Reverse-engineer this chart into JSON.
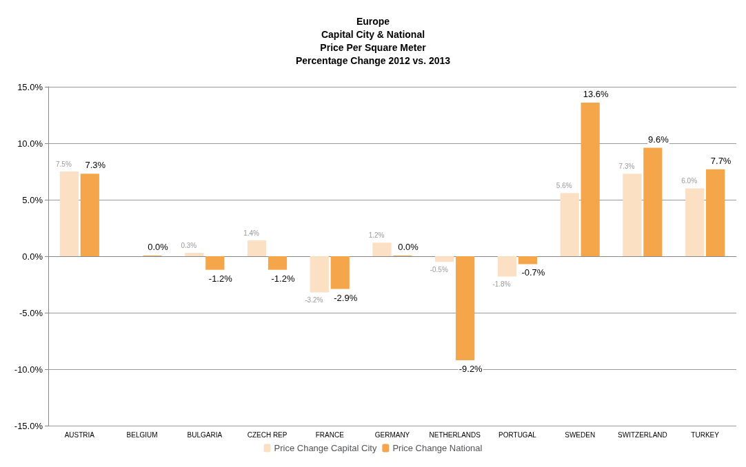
{
  "chart_data": {
    "type": "bar",
    "title": "Europe\nCapital City & National\nPrice Per Square Meter\nPercentage Change 2012 vs. 2013",
    "categories": [
      "AUSTRIA",
      "BELGIUM",
      "BULGARIA",
      "CZECH REP",
      "FRANCE",
      "GERMANY",
      "NETHERLANDS",
      "PORTUGAL",
      "SWEDEN",
      "SWITZERLAND",
      "TURKEY"
    ],
    "series": [
      {
        "name": "Price Change Capital City",
        "color": "#fbe0c4",
        "values": [
          7.5,
          null,
          0.3,
          1.4,
          -3.2,
          1.2,
          -0.5,
          -1.8,
          5.6,
          7.3,
          6.0
        ],
        "value_labels": [
          "7.5%",
          null,
          "0.3%",
          "1.4%",
          "-3.2%",
          "1.2%",
          "-0.5%",
          "-1.8%",
          "5.6%",
          "7.3%",
          "6.0%"
        ]
      },
      {
        "name": "Price Change National",
        "color": "#f5a54a",
        "values": [
          7.3,
          0.0,
          -1.2,
          -1.2,
          -2.9,
          0.0,
          -9.2,
          -0.7,
          13.6,
          9.6,
          7.7
        ],
        "value_labels": [
          "7.3%",
          "0.0%",
          "-1.2%",
          "-1.2%",
          "-2.9%",
          "0.0%",
          "-9.2%",
          "-0.7%",
          "13.6%",
          "9.6%",
          "7.7%"
        ]
      }
    ],
    "ylim": [
      -15,
      15
    ],
    "yticks": [
      {
        "value": -15,
        "label": "-15.0%"
      },
      {
        "value": -10,
        "label": "-10.0%"
      },
      {
        "value": -5,
        "label": "-5.0%"
      },
      {
        "value": 0,
        "label": "0.0%"
      },
      {
        "value": 5,
        "label": "5.0%"
      },
      {
        "value": 10,
        "label": "10.0%"
      },
      {
        "value": 15,
        "label": "15.0%"
      }
    ],
    "grid": true,
    "legend": "bottom"
  }
}
